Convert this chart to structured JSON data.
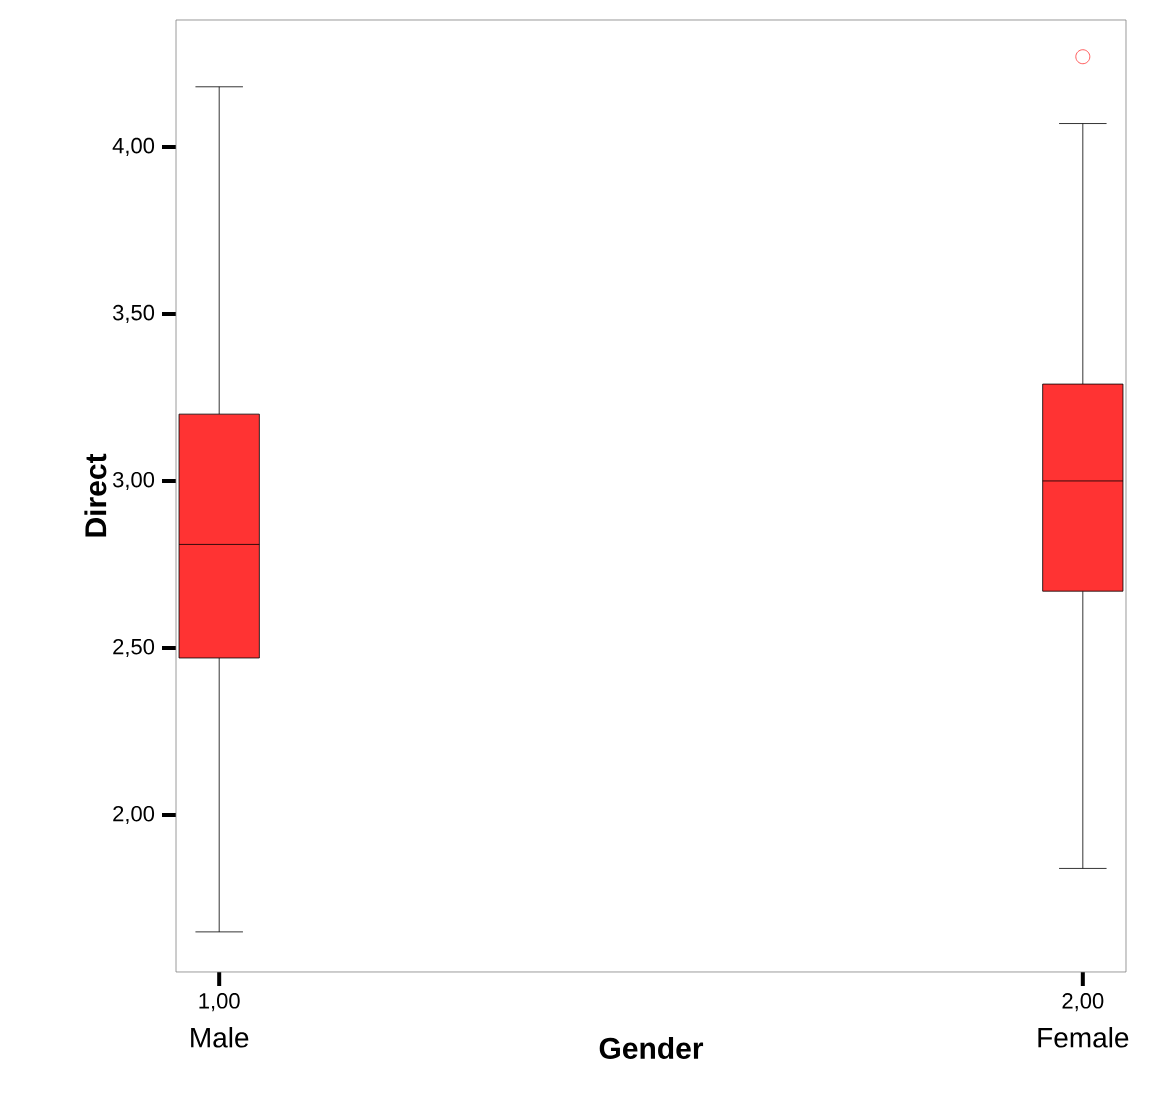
{
  "chart_data": {
    "type": "box",
    "xlabel": "Gender",
    "ylabel": "Direct",
    "categories": [
      "1,00",
      "2,00"
    ],
    "color": "#ff3333",
    "boxes": [
      {
        "low": 1.65,
        "q1": 2.47,
        "median": 2.81,
        "q3": 3.2,
        "high": 4.18
      },
      {
        "low": 1.84,
        "q1": 2.67,
        "median": 3.0,
        "q3": 3.29,
        "high": 4.07,
        "outliers": [
          4.27
        ]
      }
    ],
    "ylim": [
      1.53,
      4.38
    ],
    "yticks": [
      {
        "value": 2,
        "label": "2,00"
      },
      {
        "value": 2.5,
        "label": "2,50"
      },
      {
        "value": 3,
        "label": "3,00"
      },
      {
        "value": 3.5,
        "label": "3,50"
      },
      {
        "value": 4,
        "label": "4,00"
      }
    ],
    "annotations": [
      "Male",
      "Female"
    ]
  }
}
